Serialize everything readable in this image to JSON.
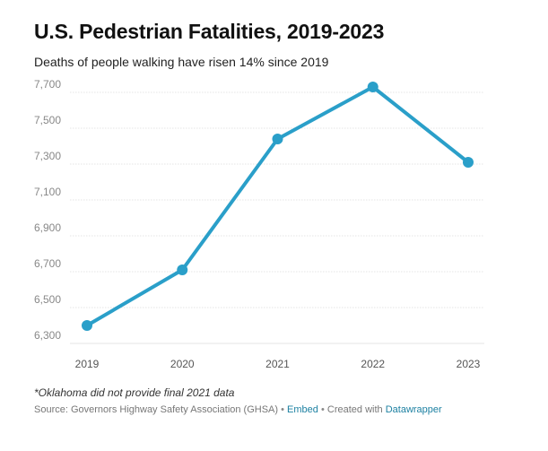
{
  "header": {
    "title": "U.S. Pedestrian Fatalities, 2019-2023",
    "subtitle": "Deaths of people walking have risen 14% since 2019"
  },
  "chart_data": {
    "type": "line",
    "title": "U.S. Pedestrian Fatalities, 2019-2023",
    "subtitle": "Deaths of people walking have risen 14% since 2019",
    "xlabel": "",
    "ylabel": "",
    "categories": [
      "2019",
      "2020",
      "2021",
      "2022",
      "2023"
    ],
    "series": [
      {
        "values": [
          6400,
          6710,
          7440,
          7730,
          7310
        ]
      }
    ],
    "ylim": [
      6250,
      7800
    ],
    "yticks": [
      6300,
      6500,
      6700,
      6900,
      7100,
      7300,
      7500,
      7700
    ],
    "ytick_labels": [
      "6,300",
      "6,500",
      "6,700",
      "6,900",
      "7,100",
      "7,300",
      "7,500",
      "7,700"
    ],
    "grid": true,
    "legend": "none",
    "line_color": "#2a9fc9",
    "grid_color": "#e4e4e4",
    "tick_label_color": "#888888"
  },
  "footer": {
    "note": "*Oklahoma did not provide final 2021 data",
    "source_label": "Source: Governors Highway Safety Association (GHSA)",
    "separator": "•",
    "embed_label": "Embed",
    "created_label": "Created with",
    "datawrapper_label": "Datawrapper",
    "link_color": "#1d81a2"
  }
}
